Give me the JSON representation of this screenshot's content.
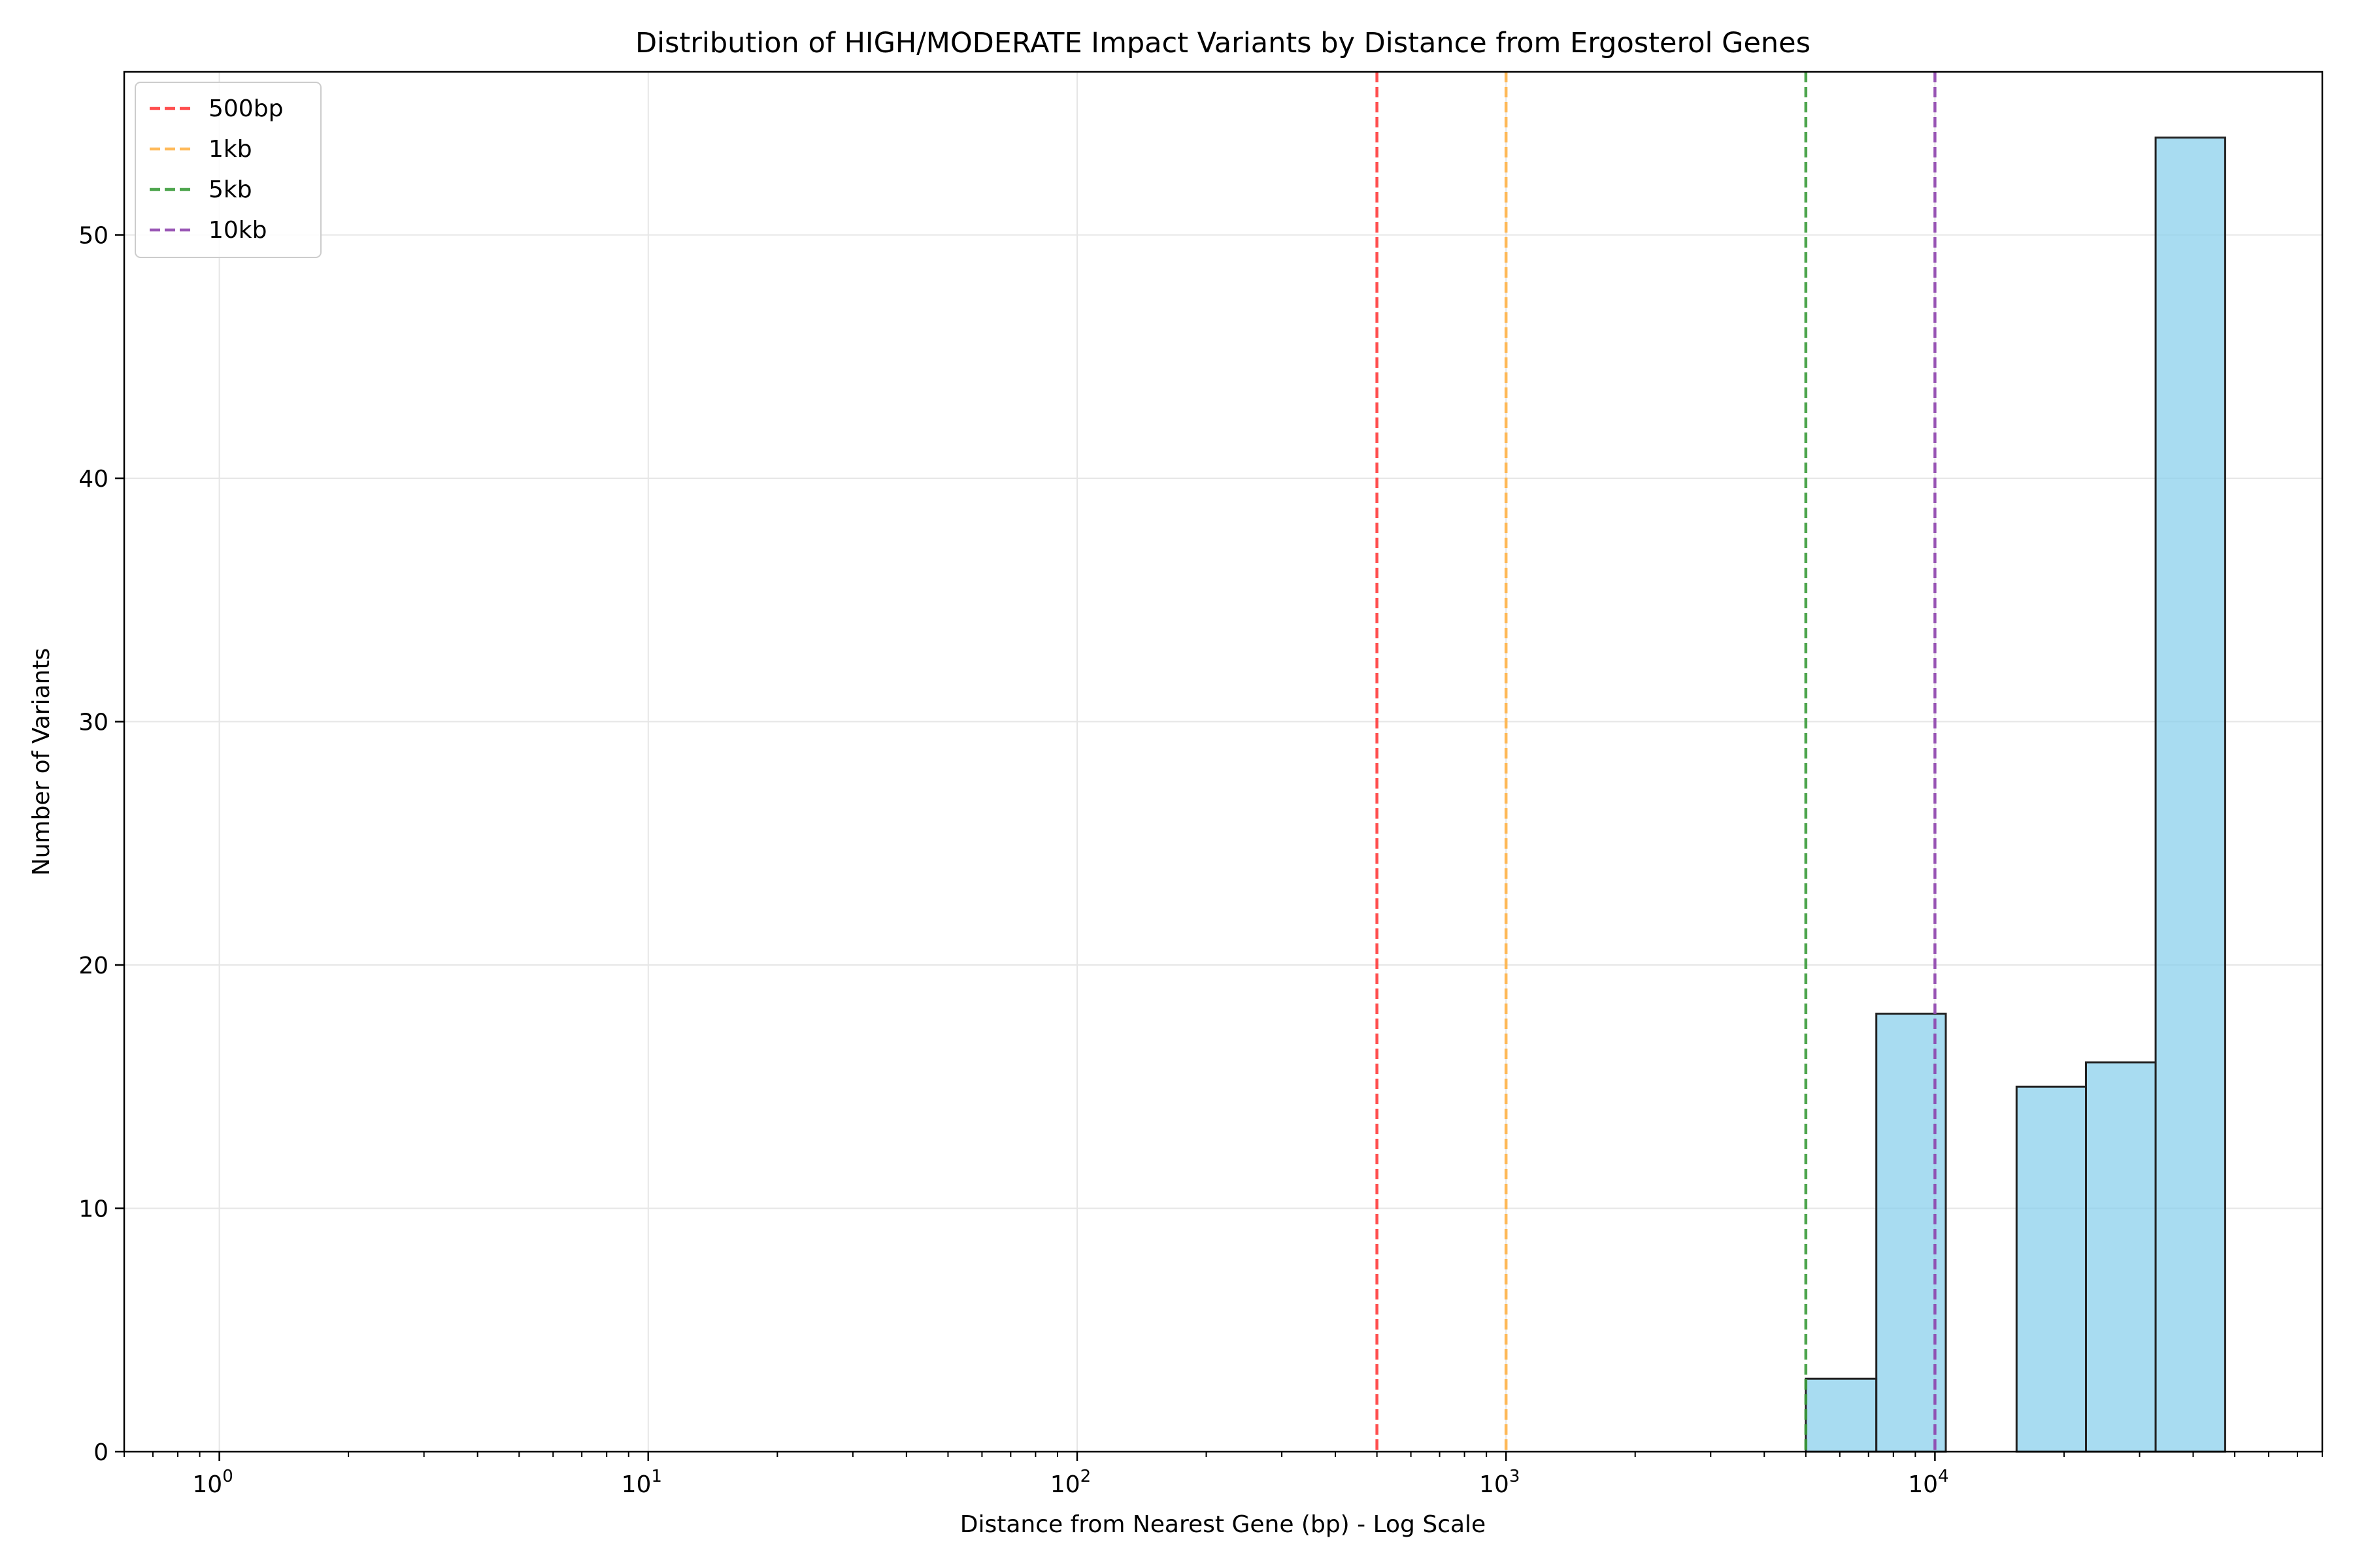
{
  "chart_data": {
    "type": "bar",
    "title": "Distribution of HIGH/MODERATE Impact Variants by Distance from Ergosterol Genes",
    "xlabel": "Distance from Nearest Gene (bp) - Log Scale",
    "ylabel": "Number of Variants",
    "xscale": "log",
    "xlim": [
      0.6,
      80000
    ],
    "ylim": [
      0,
      56.7
    ],
    "grid": true,
    "x_ticks": [
      {
        "value": 1,
        "base": "10",
        "exp": "0"
      },
      {
        "value": 10,
        "base": "10",
        "exp": "1"
      },
      {
        "value": 100,
        "base": "10",
        "exp": "2"
      },
      {
        "value": 1000,
        "base": "10",
        "exp": "3"
      },
      {
        "value": 10000,
        "base": "10",
        "exp": "4"
      }
    ],
    "y_ticks": [
      {
        "value": 0,
        "label": "0"
      },
      {
        "value": 10,
        "label": "10"
      },
      {
        "value": 20,
        "label": "20"
      },
      {
        "value": 30,
        "label": "30"
      },
      {
        "value": 40,
        "label": "40"
      },
      {
        "value": 50,
        "label": "50"
      }
    ],
    "bins": [
      {
        "x0": 5000,
        "x1": 7300,
        "count": 3
      },
      {
        "x0": 7300,
        "x1": 10600,
        "count": 18
      },
      {
        "x0": 15500,
        "x1": 22500,
        "count": 15
      },
      {
        "x0": 22500,
        "x1": 32700,
        "count": 16
      },
      {
        "x0": 32700,
        "x1": 47500,
        "count": 54
      }
    ],
    "bar_color": "#87ceeb",
    "bar_edge_color": "#222222",
    "threshold_lines": [
      {
        "label": "500bp",
        "x": 500,
        "color": "#ff3b3b"
      },
      {
        "label": "1kb",
        "x": 1000,
        "color": "#ffb347"
      },
      {
        "label": "5kb",
        "x": 5000,
        "color": "#3a9b3a"
      },
      {
        "label": "10kb",
        "x": 10000,
        "color": "#8e44ad"
      }
    ],
    "legend_position": "top-left"
  }
}
